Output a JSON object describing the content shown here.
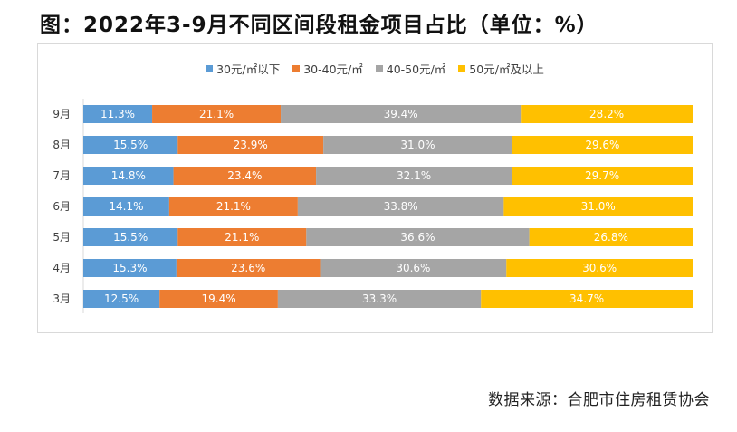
{
  "title": "图：2022年3-9月不同区间段租金项目占比（单位：%）",
  "source": "数据来源：合肥市住房租赁协会",
  "chart_data": {
    "type": "bar",
    "orientation": "horizontal",
    "stacked": "percent",
    "categories": [
      "9月",
      "8月",
      "7月",
      "6月",
      "5月",
      "4月",
      "3月"
    ],
    "series": [
      {
        "name": "30元/㎡以下",
        "color": "#5b9bd5",
        "values": [
          11.3,
          15.5,
          14.8,
          14.1,
          15.5,
          15.3,
          12.5
        ],
        "labels": [
          "11.3%",
          "15.5%",
          "14.8%",
          "14.1%",
          "15.5%",
          "15.3%",
          "12.5%"
        ]
      },
      {
        "name": "30-40元/㎡",
        "color": "#ed7d31",
        "values": [
          21.1,
          23.9,
          23.4,
          21.1,
          21.1,
          23.6,
          19.4
        ],
        "labels": [
          "21.1%",
          "23.9%",
          "23.4%",
          "21.1%",
          "21.1%",
          "23.6%",
          "19.4%"
        ]
      },
      {
        "name": "40-50元/㎡",
        "color": "#a5a5a5",
        "values": [
          39.4,
          31.0,
          32.1,
          33.8,
          36.6,
          30.6,
          33.3
        ],
        "labels": [
          "39.4%",
          "31.0%",
          "32.1%",
          "33.8%",
          "36.6%",
          "30.6%",
          "33.3%"
        ]
      },
      {
        "name": "50元/㎡及以上",
        "color": "#ffc000",
        "values": [
          28.2,
          29.6,
          29.7,
          31.0,
          26.8,
          30.6,
          34.7
        ],
        "labels": [
          "28.2%",
          "29.6%",
          "29.7%",
          "31.0%",
          "26.8%",
          "30.6%",
          "34.7%"
        ]
      }
    ],
    "legend_position": "top",
    "grid": false
  }
}
